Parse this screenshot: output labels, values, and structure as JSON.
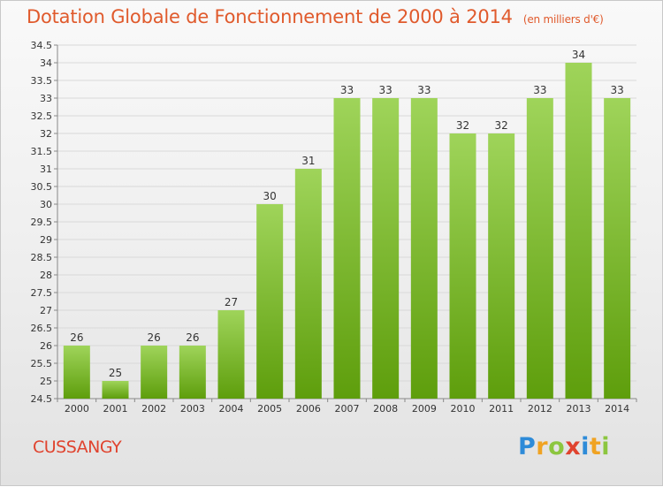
{
  "title": "Dotation Globale de Fonctionnement de 2000 à 2014",
  "unit_note": "(en milliers d'€)",
  "commune": "CUSSANGY",
  "brand": "Proxiti",
  "colors": {
    "title": "#e05a2c",
    "bar_light": "#9fd45a",
    "bar_dark": "#5e9e0c",
    "grid": "#d9d9d9",
    "commune": "#e0432e"
  },
  "chart_data": {
    "type": "bar",
    "title": "Dotation Globale de Fonctionnement de 2000 à 2014",
    "subtitle": "(en milliers d'€)",
    "xlabel": "",
    "ylabel": "",
    "ylim": [
      24.5,
      34.5
    ],
    "ytick_step": 0.5,
    "grid": true,
    "categories": [
      "2000",
      "2001",
      "2002",
      "2003",
      "2004",
      "2005",
      "2006",
      "2007",
      "2008",
      "2009",
      "2010",
      "2011",
      "2012",
      "2013",
      "2014"
    ],
    "values": [
      26,
      25,
      26,
      26,
      27,
      30,
      31,
      33,
      33,
      33,
      32,
      32,
      33,
      34,
      33
    ],
    "yticks": [
      "24.5",
      "25",
      "25.5",
      "26",
      "26.5",
      "27",
      "27.5",
      "28",
      "28.5",
      "29",
      "29.5",
      "30",
      "30.5",
      "31",
      "31.5",
      "32",
      "32.5",
      "33",
      "33.5",
      "34",
      "34.5"
    ]
  }
}
